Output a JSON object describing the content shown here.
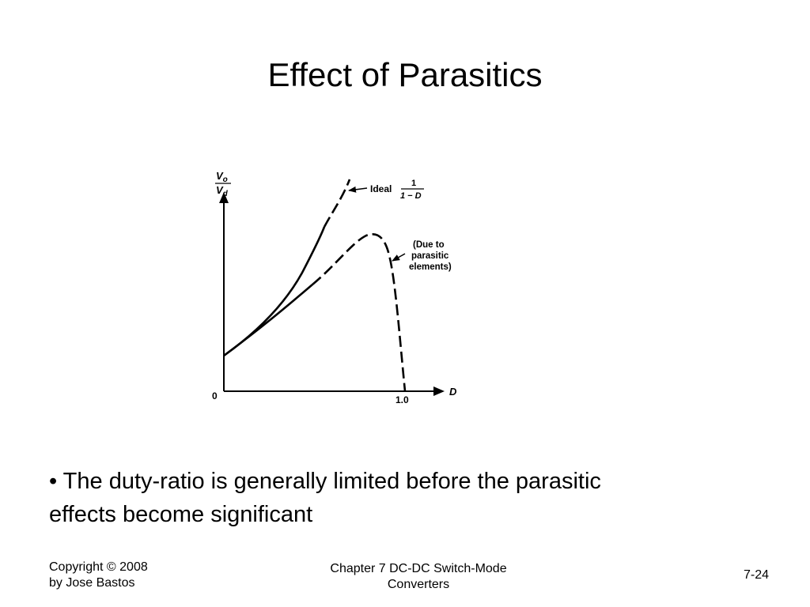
{
  "slide": {
    "title": "Effect of Parasitics",
    "bullet": "• The duty-ratio is generally limited before the parasitic effects become significant"
  },
  "figure": {
    "y_label_numerator": "V",
    "y_label_numerator_sub": "o",
    "y_label_denominator": "V",
    "y_label_denominator_sub": "d",
    "x_label": "D",
    "origin_label": "0",
    "x_tick_label": "1.0",
    "ideal_label": "Ideal",
    "ideal_fraction_numerator": "1",
    "ideal_fraction_denominator": "1 − D",
    "parasitic_label_line1": "(Due to",
    "parasitic_label_line2": "parasitic",
    "parasitic_label_line3": "elements)"
  },
  "footer": {
    "copyright_line1": "Copyright © 2008",
    "copyright_line2": "by Jose Bastos",
    "chapter_line1": "Chapter 7 DC-DC Switch-Mode",
    "chapter_line2": "Converters",
    "page_number": "7-24"
  }
}
